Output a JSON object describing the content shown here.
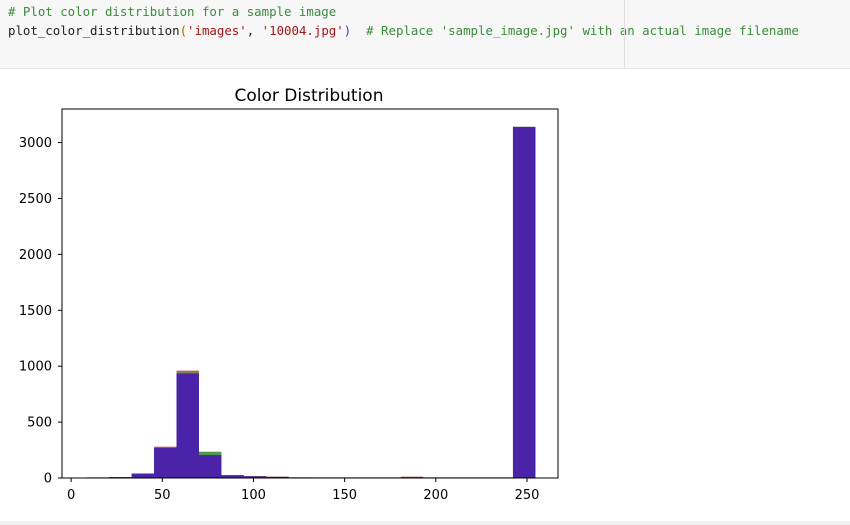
{
  "code": {
    "comment_line": "# Plot color distribution for a sample image",
    "call_fn": "plot_color_distribution",
    "open_paren": "(",
    "arg1": "'images'",
    "comma": ", ",
    "arg2": "'10004.jpg'",
    "close_paren": ")",
    "inline_comment": "  # Replace 'sample_image.jpg' with an actual image filename"
  },
  "chart_data": {
    "type": "bar",
    "title": "Color Distribution",
    "xlabel": "",
    "ylabel": "",
    "xlim": [
      -5,
      267
    ],
    "ylim": [
      0,
      3300
    ],
    "xticks": [
      0,
      50,
      100,
      150,
      200,
      250
    ],
    "yticks": [
      0,
      500,
      1000,
      1500,
      2000,
      2500,
      3000
    ],
    "grid": false,
    "bin_width": 12.3,
    "series": [
      {
        "color": "#d9544d",
        "bins": [
          {
            "x": 8.6,
            "value": 5
          },
          {
            "x": 20.9,
            "value": 8
          },
          {
            "x": 33.2,
            "value": 35
          },
          {
            "x": 45.5,
            "value": 280
          },
          {
            "x": 57.8,
            "value": 960
          },
          {
            "x": 70.1,
            "value": 210
          },
          {
            "x": 82.4,
            "value": 20
          },
          {
            "x": 94.7,
            "value": 18
          },
          {
            "x": 107.0,
            "value": 12
          },
          {
            "x": 119.3,
            "value": 6
          },
          {
            "x": 131.6,
            "value": 5
          },
          {
            "x": 143.9,
            "value": 5
          },
          {
            "x": 156.2,
            "value": 5
          },
          {
            "x": 168.5,
            "value": 5
          },
          {
            "x": 180.8,
            "value": 12
          },
          {
            "x": 193.1,
            "value": 5
          },
          {
            "x": 205.4,
            "value": 5
          },
          {
            "x": 217.7,
            "value": 5
          },
          {
            "x": 230.0,
            "value": 5
          },
          {
            "x": 242.3,
            "value": 3140
          }
        ]
      },
      {
        "color": "#4c9c4c",
        "bins": [
          {
            "x": 8.6,
            "value": 5
          },
          {
            "x": 20.9,
            "value": 8
          },
          {
            "x": 33.2,
            "value": 40
          },
          {
            "x": 45.5,
            "value": 275
          },
          {
            "x": 57.8,
            "value": 945
          },
          {
            "x": 70.1,
            "value": 235
          },
          {
            "x": 82.4,
            "value": 25
          },
          {
            "x": 94.7,
            "value": 15
          },
          {
            "x": 107.0,
            "value": 10
          },
          {
            "x": 119.3,
            "value": 5
          },
          {
            "x": 131.6,
            "value": 5
          },
          {
            "x": 143.9,
            "value": 5
          },
          {
            "x": 156.2,
            "value": 5
          },
          {
            "x": 168.5,
            "value": 5
          },
          {
            "x": 180.8,
            "value": 8
          },
          {
            "x": 193.1,
            "value": 5
          },
          {
            "x": 205.4,
            "value": 5
          },
          {
            "x": 217.7,
            "value": 5
          },
          {
            "x": 230.0,
            "value": 5
          },
          {
            "x": 242.3,
            "value": 3140
          }
        ]
      },
      {
        "color": "#4a23a8",
        "bins": [
          {
            "x": 8.6,
            "value": 5
          },
          {
            "x": 20.9,
            "value": 8
          },
          {
            "x": 33.2,
            "value": 40
          },
          {
            "x": 45.5,
            "value": 270
          },
          {
            "x": 57.8,
            "value": 935
          },
          {
            "x": 70.1,
            "value": 205
          },
          {
            "x": 82.4,
            "value": 25
          },
          {
            "x": 94.7,
            "value": 15
          },
          {
            "x": 107.0,
            "value": 10
          },
          {
            "x": 119.3,
            "value": 5
          },
          {
            "x": 131.6,
            "value": 5
          },
          {
            "x": 143.9,
            "value": 5
          },
          {
            "x": 156.2,
            "value": 5
          },
          {
            "x": 168.5,
            "value": 5
          },
          {
            "x": 180.8,
            "value": 8
          },
          {
            "x": 193.1,
            "value": 5
          },
          {
            "x": 205.4,
            "value": 5
          },
          {
            "x": 217.7,
            "value": 5
          },
          {
            "x": 230.0,
            "value": 5
          },
          {
            "x": 242.3,
            "value": 3140
          }
        ]
      }
    ]
  }
}
